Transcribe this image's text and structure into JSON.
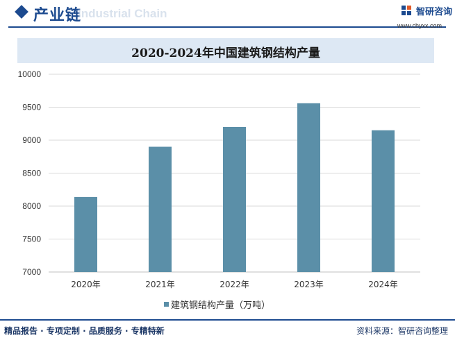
{
  "header": {
    "title": "产业链",
    "ghost_text": "Industrial Chain",
    "logo_name": "智研咨询",
    "logo_url": "www.chyxx.com"
  },
  "chart_data": {
    "type": "bar",
    "title": "2020-2024年中国建筑钢结构产量",
    "categories": [
      "2020年",
      "2021年",
      "2022年",
      "2023年",
      "2024年"
    ],
    "series": [
      {
        "name": "建筑钢结构产量（万吨）",
        "values": [
          8138,
          8900,
          9200,
          9560,
          9150
        ]
      }
    ],
    "ylim": [
      7000,
      10000
    ],
    "yticks": [
      7000,
      7500,
      8000,
      8500,
      9000,
      9500,
      10000
    ],
    "ytick_labels": [
      "7000",
      "7500",
      "8000",
      "8500",
      "9000",
      "9500",
      "10000"
    ],
    "grid": true,
    "legend_position": "bottom",
    "colors": {
      "bar": "#5b8fa8",
      "grid": "#d9d9d9",
      "axis": "#bfbfbf"
    }
  },
  "footer": {
    "left": "精品报告 · 专项定制 · 品质服务 · 专精特新",
    "right": "资料来源：智研咨询整理"
  },
  "colors": {
    "brand": "#1c4a8f",
    "title_band": "#dde8f4"
  }
}
